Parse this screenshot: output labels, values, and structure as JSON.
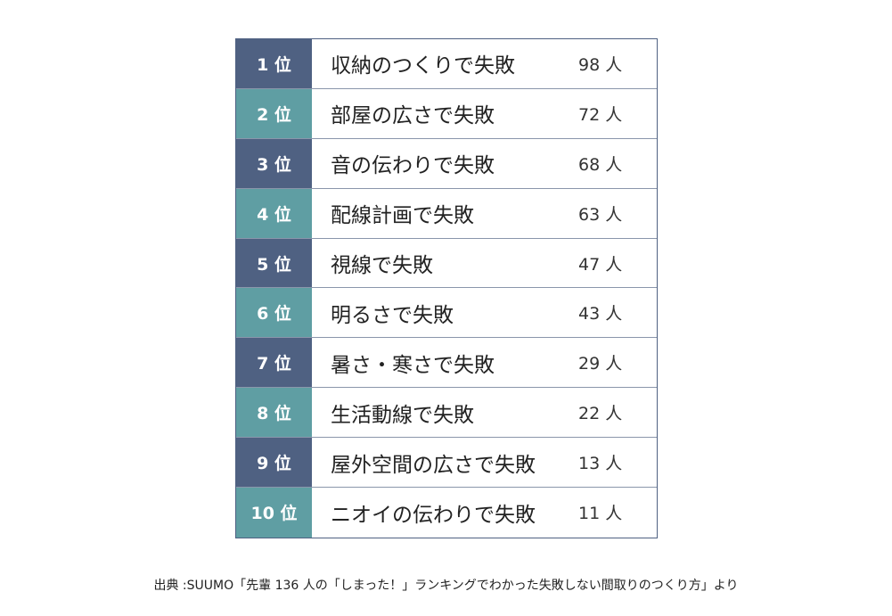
{
  "colors": {
    "odd_rank": "#4f6182",
    "even_rank": "#5f9ea3",
    "border": "#4f6182"
  },
  "chart_data": {
    "type": "table",
    "rows": [
      {
        "rank": "1 位",
        "label": "収納のつくりで失敗",
        "count": "98 人"
      },
      {
        "rank": "2 位",
        "label": "部屋の広さで失敗",
        "count": "72 人"
      },
      {
        "rank": "3 位",
        "label": "音の伝わりで失敗",
        "count": "68 人"
      },
      {
        "rank": "4 位",
        "label": "配線計画で失敗",
        "count": "63 人"
      },
      {
        "rank": "5 位",
        "label": "視線で失敗",
        "count": "47 人"
      },
      {
        "rank": "6 位",
        "label": "明るさで失敗",
        "count": "43 人"
      },
      {
        "rank": "7 位",
        "label": "暑さ・寒さで失敗",
        "count": "29 人"
      },
      {
        "rank": "8 位",
        "label": "生活動線で失敗",
        "count": "22 人"
      },
      {
        "rank": "9 位",
        "label": "屋外空間の広さで失敗",
        "count": "13 人"
      },
      {
        "rank": "10 位",
        "label": "ニオイの伝わりで失敗",
        "count": "11 人"
      }
    ]
  },
  "source": "出典 :SUUMO「先輩 136 人の「しまった！」ランキングでわかった失敗しない間取りのつくり方」より"
}
